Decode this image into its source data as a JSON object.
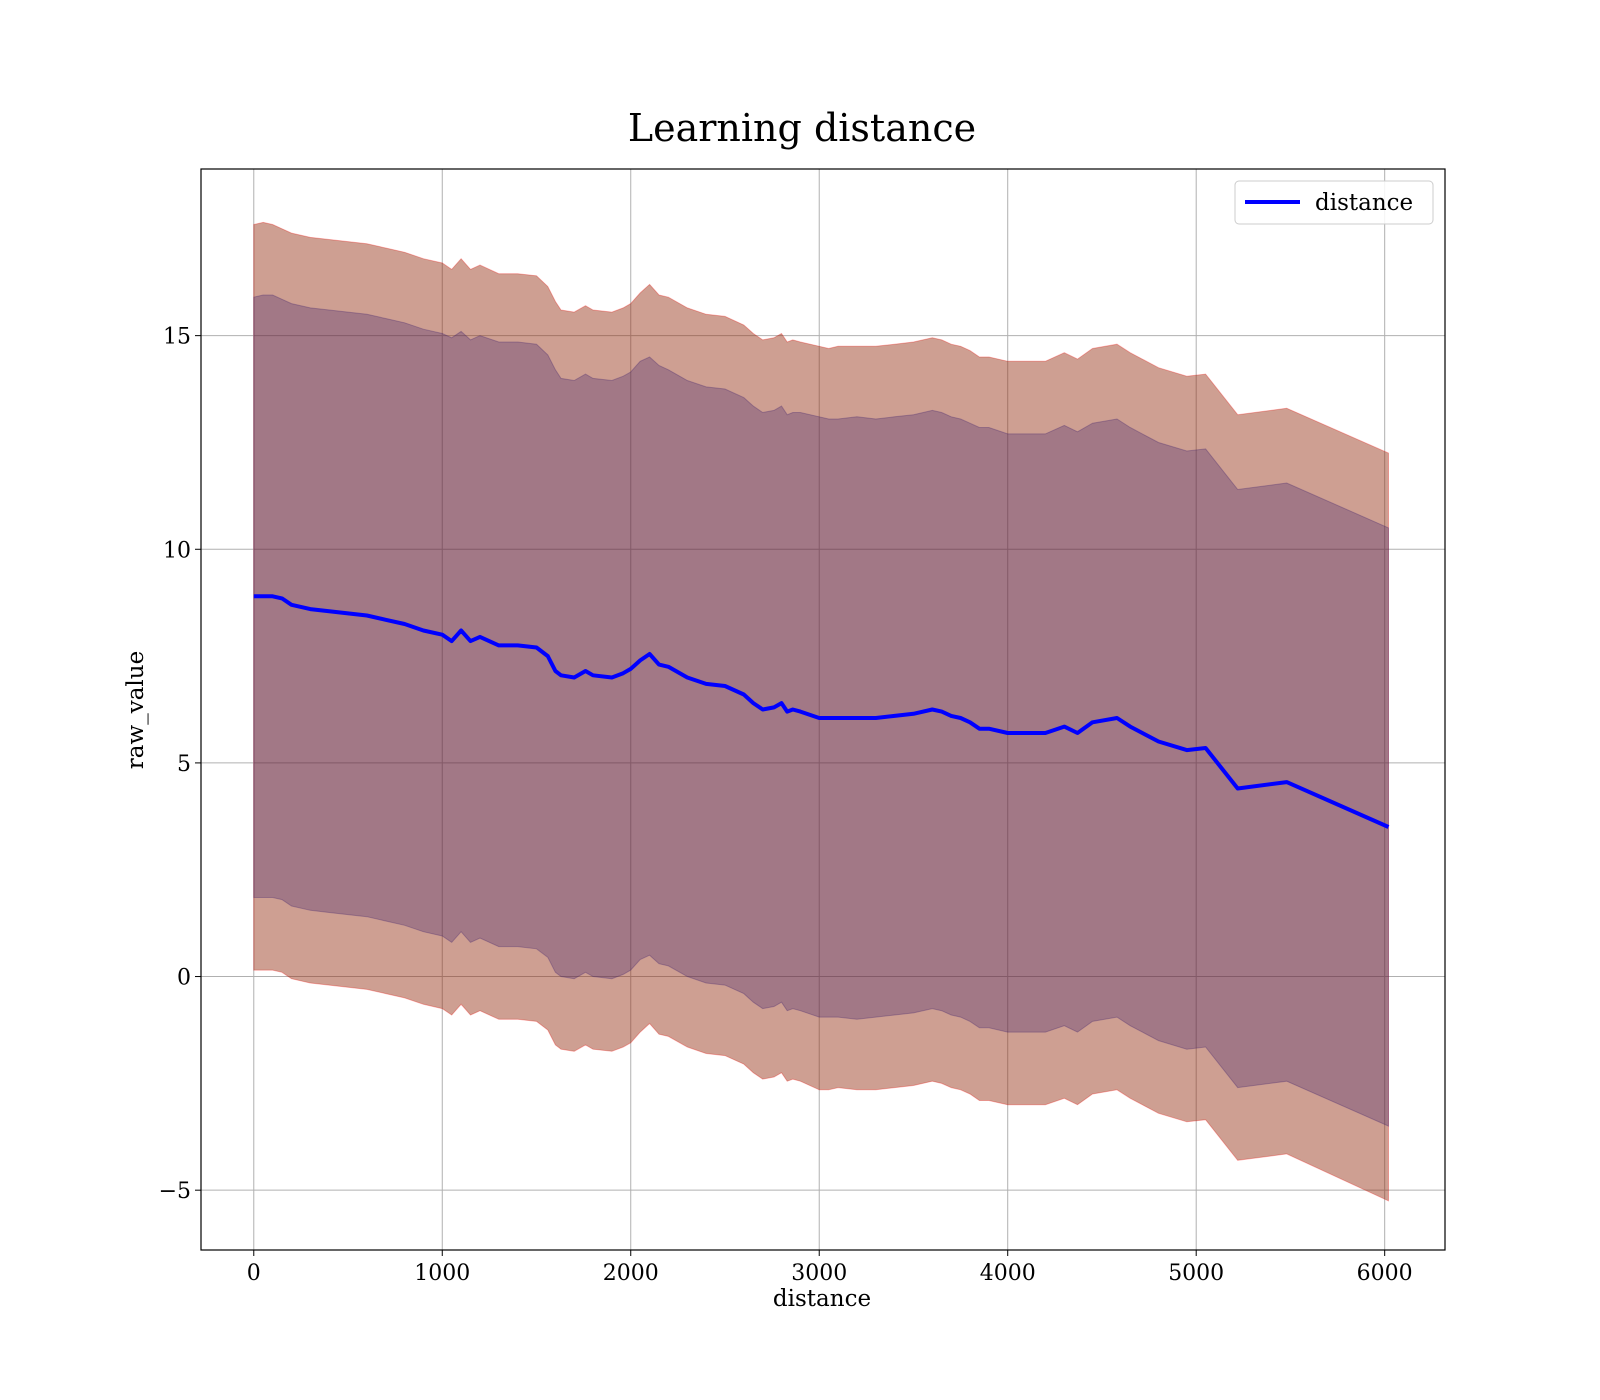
{
  "chart_data": {
    "type": "line",
    "title": "Learning distance",
    "xlabel": "distance",
    "ylabel": "raw_value",
    "xlim": [
      -280,
      6320
    ],
    "ylim": [
      -6.4,
      18.9
    ],
    "x_ticks": [
      0,
      1000,
      2000,
      3000,
      4000,
      5000,
      6000
    ],
    "y_ticks": [
      -5,
      0,
      5,
      10,
      15
    ],
    "x_tick_labels": [
      "0",
      "1000",
      "2000",
      "3000",
      "4000",
      "5000",
      "6000"
    ],
    "y_tick_labels": [
      "−5",
      "0",
      "5",
      "10",
      "15"
    ],
    "grid": true,
    "legend": {
      "position": "top-right",
      "entries": [
        "distance"
      ]
    },
    "colors": {
      "line": "#0000ff",
      "band": "#ff0000",
      "inner_band": "#0f2f0f"
    },
    "series": [
      {
        "name": "distance",
        "x": [
          0,
          50,
          100,
          150,
          200,
          300,
          400,
          500,
          600,
          700,
          800,
          900,
          1000,
          1050,
          1100,
          1150,
          1200,
          1300,
          1400,
          1500,
          1560,
          1600,
          1630,
          1700,
          1760,
          1800,
          1900,
          1960,
          2000,
          2050,
          2100,
          2150,
          2200,
          2300,
          2400,
          2500,
          2600,
          2650,
          2700,
          2760,
          2800,
          2830,
          2860,
          2900,
          3000,
          3050,
          3100,
          3200,
          3300,
          3400,
          3500,
          3600,
          3650,
          3700,
          3750,
          3800,
          3850,
          3900,
          4000,
          4200,
          4300,
          4370,
          4450,
          4580,
          4650,
          4800,
          4950,
          5050,
          5220,
          5480,
          6020
        ],
        "y": [
          8.9,
          8.9,
          8.9,
          8.85,
          8.7,
          8.6,
          8.55,
          8.5,
          8.45,
          8.35,
          8.25,
          8.1,
          8.0,
          7.85,
          8.1,
          7.85,
          7.95,
          7.75,
          7.75,
          7.7,
          7.5,
          7.15,
          7.05,
          7.0,
          7.15,
          7.05,
          7.0,
          7.1,
          7.2,
          7.4,
          7.55,
          7.3,
          7.25,
          7.0,
          6.85,
          6.8,
          6.6,
          6.4,
          6.25,
          6.3,
          6.4,
          6.2,
          6.25,
          6.2,
          6.05,
          6.05,
          6.05,
          6.05,
          6.05,
          6.1,
          6.15,
          6.25,
          6.2,
          6.1,
          6.05,
          5.95,
          5.8,
          5.8,
          5.7,
          5.7,
          5.85,
          5.7,
          5.95,
          6.05,
          5.85,
          5.5,
          5.3,
          5.35,
          4.4,
          4.55,
          3.5
        ],
        "band_inner": {
          "upper": [
            15.9,
            15.95,
            15.95,
            15.85,
            15.75,
            15.65,
            15.6,
            15.55,
            15.5,
            15.4,
            15.3,
            15.15,
            15.05,
            14.95,
            15.1,
            14.9,
            15.0,
            14.85,
            14.85,
            14.8,
            14.55,
            14.2,
            14.0,
            13.95,
            14.1,
            14.0,
            13.95,
            14.05,
            14.15,
            14.4,
            14.5,
            14.3,
            14.2,
            13.95,
            13.8,
            13.75,
            13.55,
            13.35,
            13.2,
            13.25,
            13.35,
            13.15,
            13.2,
            13.2,
            13.1,
            13.05,
            13.05,
            13.1,
            13.05,
            13.1,
            13.15,
            13.25,
            13.2,
            13.1,
            13.05,
            12.95,
            12.85,
            12.85,
            12.7,
            12.7,
            12.9,
            12.75,
            12.95,
            13.05,
            12.85,
            12.5,
            12.3,
            12.35,
            11.4,
            11.55,
            10.5
          ],
          "lower": [
            1.85,
            1.85,
            1.85,
            1.8,
            1.65,
            1.55,
            1.5,
            1.45,
            1.4,
            1.3,
            1.2,
            1.05,
            0.95,
            0.8,
            1.05,
            0.8,
            0.9,
            0.7,
            0.7,
            0.65,
            0.45,
            0.1,
            0.0,
            -0.05,
            0.1,
            0.0,
            -0.05,
            0.05,
            0.15,
            0.4,
            0.5,
            0.3,
            0.25,
            0.0,
            -0.15,
            -0.2,
            -0.4,
            -0.6,
            -0.75,
            -0.7,
            -0.6,
            -0.8,
            -0.75,
            -0.8,
            -0.95,
            -0.95,
            -0.95,
            -1.0,
            -0.95,
            -0.9,
            -0.85,
            -0.75,
            -0.8,
            -0.9,
            -0.95,
            -1.05,
            -1.2,
            -1.2,
            -1.3,
            -1.3,
            -1.15,
            -1.3,
            -1.05,
            -0.95,
            -1.15,
            -1.5,
            -1.7,
            -1.65,
            -2.6,
            -2.45,
            -3.5
          ]
        },
        "band_outer": {
          "upper": [
            17.6,
            17.65,
            17.6,
            17.5,
            17.4,
            17.3,
            17.25,
            17.2,
            17.15,
            17.05,
            16.95,
            16.8,
            16.7,
            16.55,
            16.8,
            16.55,
            16.65,
            16.45,
            16.45,
            16.4,
            16.15,
            15.8,
            15.6,
            15.55,
            15.7,
            15.6,
            15.55,
            15.65,
            15.75,
            16.0,
            16.2,
            15.95,
            15.9,
            15.65,
            15.5,
            15.45,
            15.25,
            15.05,
            14.9,
            14.95,
            15.05,
            14.85,
            14.9,
            14.85,
            14.75,
            14.7,
            14.75,
            14.75,
            14.75,
            14.8,
            14.85,
            14.95,
            14.9,
            14.8,
            14.75,
            14.65,
            14.5,
            14.5,
            14.4,
            14.4,
            14.6,
            14.45,
            14.7,
            14.8,
            14.6,
            14.25,
            14.05,
            14.1,
            13.15,
            13.3,
            12.25
          ],
          "lower": [
            0.15,
            0.15,
            0.15,
            0.1,
            -0.05,
            -0.15,
            -0.2,
            -0.25,
            -0.3,
            -0.4,
            -0.5,
            -0.65,
            -0.75,
            -0.9,
            -0.65,
            -0.9,
            -0.8,
            -1.0,
            -1.0,
            -1.05,
            -1.25,
            -1.6,
            -1.7,
            -1.75,
            -1.6,
            -1.7,
            -1.75,
            -1.65,
            -1.55,
            -1.3,
            -1.1,
            -1.35,
            -1.4,
            -1.65,
            -1.8,
            -1.85,
            -2.05,
            -2.25,
            -2.4,
            -2.35,
            -2.25,
            -2.45,
            -2.4,
            -2.45,
            -2.65,
            -2.65,
            -2.6,
            -2.65,
            -2.65,
            -2.6,
            -2.55,
            -2.45,
            -2.5,
            -2.6,
            -2.65,
            -2.75,
            -2.9,
            -2.9,
            -3.0,
            -3.0,
            -2.85,
            -3.0,
            -2.75,
            -2.65,
            -2.85,
            -3.2,
            -3.4,
            -3.35,
            -4.3,
            -4.15,
            -5.25
          ]
        }
      }
    ]
  }
}
